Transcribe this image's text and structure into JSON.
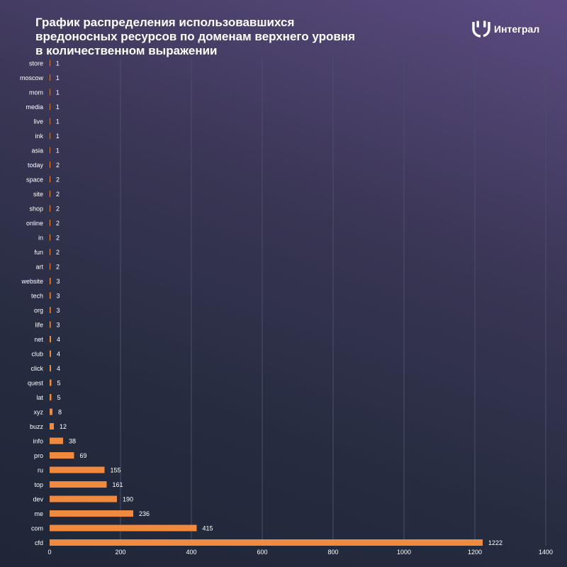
{
  "header": {
    "title": "График распределения использовавшихся\nвредоносных ресурсов по доменам верхнего уровня\nв количественном выражении"
  },
  "brand": {
    "name": "Интеграл",
    "logo_icon": "bracket-smile-logo-icon"
  },
  "colors": {
    "bar": "#f08a3e",
    "text": "#ffffff",
    "grid": "#4a4f6a"
  },
  "chart_data": {
    "type": "bar",
    "orientation": "horizontal",
    "title": "График распределения использовавшихся вредоносных ресурсов по доменам верхнего уровня в количественном выражении",
    "xlabel": "",
    "ylabel": "",
    "xlim": [
      0,
      1400
    ],
    "xticks": [
      0,
      200,
      400,
      600,
      800,
      1000,
      1200,
      1400
    ],
    "grid": "vertical",
    "legend": "none",
    "categories": [
      "store",
      "moscow",
      "mom",
      "media",
      "live",
      "ink",
      "asia",
      "today",
      "space",
      "site",
      "shop",
      "online",
      "in",
      "fun",
      "art",
      "website",
      "tech",
      "org",
      "life",
      "net",
      "club",
      "click",
      "quest",
      "lat",
      "xyz",
      "buzz",
      "info",
      "pro",
      "ru",
      "top",
      "dev",
      "me",
      "com",
      "cfd"
    ],
    "values": [
      1,
      1,
      1,
      1,
      1,
      1,
      1,
      2,
      2,
      2,
      2,
      2,
      2,
      2,
      2,
      3,
      3,
      3,
      3,
      4,
      4,
      4,
      5,
      5,
      8,
      12,
      38,
      69,
      155,
      161,
      190,
      236,
      415,
      1222
    ]
  }
}
